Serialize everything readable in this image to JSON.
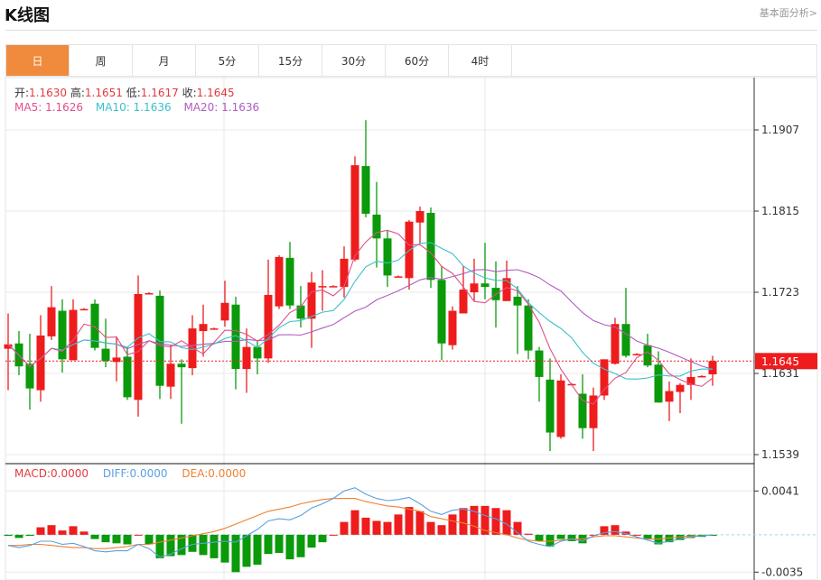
{
  "header": {
    "title": "K线图",
    "link": "基本面分析>"
  },
  "tabs": [
    {
      "label": "日",
      "active": true
    },
    {
      "label": "周"
    },
    {
      "label": "月"
    },
    {
      "label": "5分"
    },
    {
      "label": "15分"
    },
    {
      "label": "30分"
    },
    {
      "label": "60分"
    },
    {
      "label": "4时"
    }
  ],
  "ohlc_info": {
    "open_label": "开:",
    "open": "1.1630",
    "high_label": "高:",
    "high": "1.1651",
    "low_label": "低:",
    "low": "1.1617",
    "close_label": "收:",
    "close": "1.1645"
  },
  "ma_info": {
    "ma5_label": "MA5:",
    "ma5": "1.1626",
    "ma10_label": "MA10:",
    "ma10": "1.1636",
    "ma20_label": "MA20:",
    "ma20": "1.1636"
  },
  "macd_info": {
    "macd_label": "MACD:",
    "macd": "0.0000",
    "diff_label": "DIFF:",
    "diff": "0.0000",
    "dea_label": "DEA:",
    "dea": "0.0000"
  },
  "colors": {
    "up": "#ee1c1c",
    "down": "#0a9a0a",
    "ma5": "#e0508a",
    "ma10": "#3cc0c8",
    "ma20": "#b05cc0",
    "diff": "#5aa0e0",
    "dea": "#f08030",
    "active_tab": "#f08a3c"
  },
  "chart_data": [
    {
      "type": "candlestick",
      "yticks": [
        "1.1907",
        "1.1815",
        "1.1723",
        "1.1631",
        "1.1539"
      ],
      "ylim": [
        1.1539,
        1.1907
      ],
      "current_price": "1.1645",
      "grid": true,
      "candles_ohlc": [
        [
          1.1659,
          1.1699,
          1.1612,
          1.1664
        ],
        [
          1.1665,
          1.1679,
          1.1629,
          1.1639
        ],
        [
          1.1642,
          1.1676,
          1.159,
          1.1614
        ],
        [
          1.1612,
          1.1697,
          1.1599,
          1.1674
        ],
        [
          1.1673,
          1.173,
          1.1669,
          1.1706
        ],
        [
          1.1702,
          1.1715,
          1.1632,
          1.1647
        ],
        [
          1.1646,
          1.1715,
          1.1646,
          1.1703
        ],
        [
          1.1704,
          1.1705,
          1.1703,
          1.1704
        ],
        [
          1.171,
          1.1715,
          1.1657,
          1.166
        ],
        [
          1.1659,
          1.1693,
          1.1638,
          1.1645
        ],
        [
          1.1644,
          1.1673,
          1.1622,
          1.1649
        ],
        [
          1.165,
          1.1661,
          1.1601,
          1.1604
        ],
        [
          1.1601,
          1.1742,
          1.1582,
          1.1721
        ],
        [
          1.1722,
          1.1723,
          1.1721,
          1.1722
        ],
        [
          1.1719,
          1.1725,
          1.1602,
          1.1617
        ],
        [
          1.1616,
          1.1663,
          1.1602,
          1.1642
        ],
        [
          1.1642,
          1.1647,
          1.1574,
          1.1638
        ],
        [
          1.1637,
          1.1697,
          1.1629,
          1.1682
        ],
        [
          1.1679,
          1.1709,
          1.165,
          1.1687
        ],
        [
          1.1682,
          1.1683,
          1.1681,
          1.1682
        ],
        [
          1.1691,
          1.1736,
          1.1684,
          1.1711
        ],
        [
          1.1709,
          1.1718,
          1.1613,
          1.1636
        ],
        [
          1.1636,
          1.1682,
          1.1609,
          1.1661
        ],
        [
          1.1661,
          1.1668,
          1.163,
          1.1648
        ],
        [
          1.1648,
          1.176,
          1.1643,
          1.172
        ],
        [
          1.1707,
          1.1765,
          1.1704,
          1.1763
        ],
        [
          1.1762,
          1.178,
          1.1704,
          1.1708
        ],
        [
          1.1708,
          1.173,
          1.1683,
          1.1693
        ],
        [
          1.1693,
          1.1746,
          1.166,
          1.1734
        ],
        [
          1.173,
          1.1748,
          1.1702,
          1.173
        ],
        [
          1.173,
          1.1731,
          1.1729,
          1.173
        ],
        [
          1.1729,
          1.1775,
          1.1717,
          1.1761
        ],
        [
          1.176,
          1.1877,
          1.1758,
          1.1867
        ],
        [
          1.1866,
          1.1918,
          1.1808,
          1.1812
        ],
        [
          1.1811,
          1.1848,
          1.1751,
          1.1784
        ],
        [
          1.1784,
          1.1793,
          1.1729,
          1.1742
        ],
        [
          1.1741,
          1.1742,
          1.174,
          1.1741
        ],
        [
          1.1739,
          1.1805,
          1.1726,
          1.1803
        ],
        [
          1.1802,
          1.182,
          1.1778,
          1.1815
        ],
        [
          1.1813,
          1.1819,
          1.1728,
          1.1737
        ],
        [
          1.1737,
          1.1753,
          1.1646,
          1.1665
        ],
        [
          1.1663,
          1.1707,
          1.1658,
          1.1702
        ],
        [
          1.1699,
          1.1753,
          1.1699,
          1.1726
        ],
        [
          1.1723,
          1.1761,
          1.1713,
          1.1733
        ],
        [
          1.1733,
          1.1779,
          1.1715,
          1.1729
        ],
        [
          1.1728,
          1.1758,
          1.1683,
          1.1714
        ],
        [
          1.1713,
          1.1759,
          1.1713,
          1.1739
        ],
        [
          1.1718,
          1.173,
          1.1653,
          1.1708
        ],
        [
          1.1708,
          1.1715,
          1.1647,
          1.1657
        ],
        [
          1.1657,
          1.1661,
          1.1599,
          1.1627
        ],
        [
          1.1624,
          1.1648,
          1.1543,
          1.1564
        ],
        [
          1.1559,
          1.163,
          1.1557,
          1.1623
        ],
        [
          1.1619,
          1.162,
          1.1618,
          1.1619
        ],
        [
          1.1608,
          1.163,
          1.1557,
          1.1569
        ],
        [
          1.1569,
          1.1615,
          1.1543,
          1.1606
        ],
        [
          1.1606,
          1.1647,
          1.1601,
          1.1647
        ],
        [
          1.1642,
          1.1694,
          1.1641,
          1.1687
        ],
        [
          1.1687,
          1.1728,
          1.1649,
          1.1651
        ],
        [
          1.1653,
          1.1654,
          1.1652,
          1.1653
        ],
        [
          1.1663,
          1.1676,
          1.1638,
          1.164
        ],
        [
          1.1641,
          1.1656,
          1.1598,
          1.1598
        ],
        [
          1.1599,
          1.1622,
          1.1577,
          1.1611
        ],
        [
          1.161,
          1.162,
          1.1586,
          1.1618
        ],
        [
          1.1618,
          1.1648,
          1.1601,
          1.1627
        ],
        [
          1.1628,
          1.1629,
          1.1627,
          1.1628
        ],
        [
          1.163,
          1.1651,
          1.1617,
          1.1645
        ]
      ],
      "moving_averages": [
        "MA5",
        "MA10",
        "MA20"
      ]
    },
    {
      "type": "macd",
      "yticks": [
        "0.0041",
        "-0.0035"
      ],
      "ylim": [
        -0.0035,
        0.0041
      ],
      "histogram": [
        -0.0001,
        -0.0003,
        -0.0001,
        0.0007,
        0.0009,
        0.0004,
        0.0008,
        0.0003,
        -0.0004,
        -0.0007,
        -0.0008,
        -0.0009,
        0.0,
        -0.0009,
        -0.0022,
        -0.002,
        -0.0019,
        -0.0016,
        -0.0019,
        -0.0022,
        -0.0026,
        -0.0035,
        -0.003,
        -0.0028,
        -0.0018,
        -0.0017,
        -0.0023,
        -0.0021,
        -0.0012,
        -0.0007,
        0.0,
        0.0012,
        0.0023,
        0.0016,
        0.0013,
        0.0012,
        0.0019,
        0.0026,
        0.0022,
        0.0012,
        0.0009,
        0.0019,
        0.0025,
        0.0027,
        0.0027,
        0.0025,
        0.0023,
        0.0012,
        0.0001,
        -0.0006,
        -0.0011,
        -0.0004,
        -0.0006,
        -0.0008,
        0.0,
        0.0008,
        0.0009,
        0.0003,
        0.0,
        -0.0004,
        -0.0009,
        -0.0007,
        -0.0005,
        -0.0003,
        -0.0002,
        -0.0001
      ],
      "diff": [
        -0.001,
        -0.0012,
        -0.001,
        -0.0006,
        -0.0006,
        -0.0009,
        -0.0008,
        -0.0011,
        -0.0015,
        -0.0016,
        -0.0015,
        -0.0015,
        -0.0009,
        -0.0013,
        -0.0021,
        -0.0018,
        -0.0013,
        -0.0009,
        -0.0008,
        -0.0007,
        -0.0006,
        -0.0007,
        -0.0001,
        0.0005,
        0.0013,
        0.0015,
        0.0014,
        0.0018,
        0.0025,
        0.0029,
        0.0034,
        0.0041,
        0.0044,
        0.0038,
        0.0034,
        0.0032,
        0.0033,
        0.0035,
        0.0029,
        0.0022,
        0.0019,
        0.0023,
        0.0024,
        0.0022,
        0.0018,
        0.0015,
        0.001,
        0.0002,
        -0.0006,
        -0.0009,
        -0.0011,
        -0.0006,
        -0.0004,
        -0.0006,
        -0.0001,
        0.0002,
        0.0003,
        0.0001,
        -0.0002,
        -0.0005,
        -0.0008,
        -0.0006,
        -0.0004,
        -0.0002,
        -0.0001,
        0.0
      ],
      "dea": [
        -0.001,
        -0.001,
        -0.0009,
        -0.0009,
        -0.001,
        -0.0011,
        -0.0012,
        -0.0012,
        -0.0013,
        -0.0013,
        -0.0012,
        -0.0011,
        -0.0009,
        -0.0009,
        -0.0007,
        -0.0005,
        -0.0003,
        -0.0001,
        0.0001,
        0.0003,
        0.0006,
        0.001,
        0.0014,
        0.0018,
        0.0022,
        0.0024,
        0.0026,
        0.0029,
        0.0031,
        0.0033,
        0.0034,
        0.0034,
        0.0034,
        0.0031,
        0.0029,
        0.0027,
        0.0026,
        0.0024,
        0.0022,
        0.0017,
        0.0015,
        0.0013,
        0.0011,
        0.0008,
        0.0004,
        0.0002,
        0.0,
        -0.0003,
        -0.0005,
        -0.0006,
        -0.0006,
        -0.0005,
        -0.0004,
        -0.0004,
        -0.0002,
        -0.0001,
        -0.0001,
        -0.0002,
        -0.0003,
        -0.0004,
        -0.0004,
        -0.0003,
        -0.0002,
        -0.0001,
        -0.0001,
        0.0
      ]
    }
  ]
}
